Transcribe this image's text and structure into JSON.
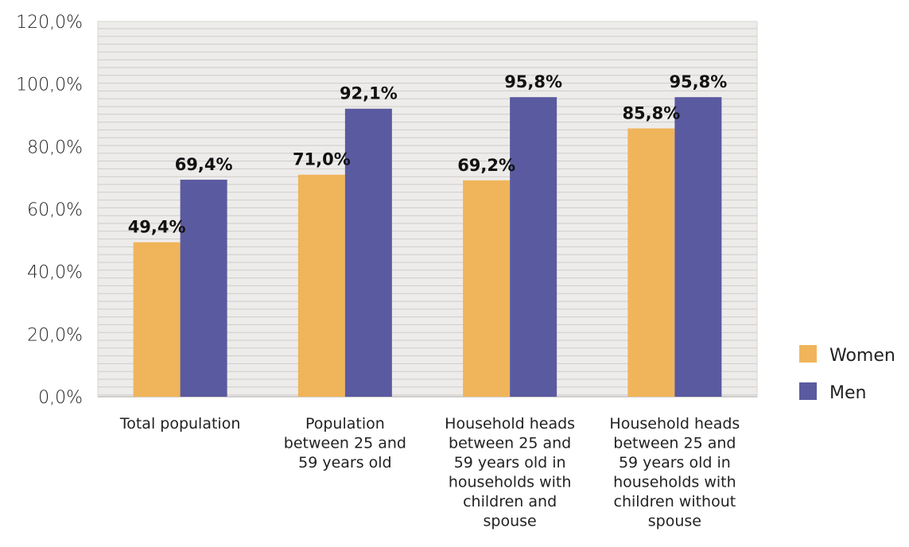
{
  "chart_data": {
    "type": "bar",
    "title": "",
    "xlabel": "",
    "ylabel": "",
    "ylim": [
      0,
      120
    ],
    "yticks": [
      "0,0%",
      "20,0%",
      "40,0%",
      "60,0%",
      "80,0%",
      "100,0%",
      "120,0%"
    ],
    "grid": true,
    "legend_position": "right",
    "categories": [
      [
        "Total population"
      ],
      [
        "Population",
        "between 25 and",
        "59 years old"
      ],
      [
        "Household heads",
        "between 25 and",
        "59 years old in",
        "households with",
        "children and",
        "spouse"
      ],
      [
        "Household heads",
        "between 25 and",
        "59 years old in",
        "households with",
        "children without",
        "spouse"
      ]
    ],
    "series": [
      {
        "name": "Women",
        "color": "#f0b45a",
        "values": [
          49.4,
          71.0,
          69.2,
          85.8
        ],
        "labels": [
          "49,4%",
          "71,0%",
          "69,2%",
          "85,8%"
        ]
      },
      {
        "name": "Men",
        "color": "#5a5aa0",
        "values": [
          69.4,
          92.1,
          95.8,
          95.8
        ],
        "labels": [
          "69,4%",
          "92,1%",
          "95,8%",
          "95,8%"
        ]
      }
    ]
  }
}
